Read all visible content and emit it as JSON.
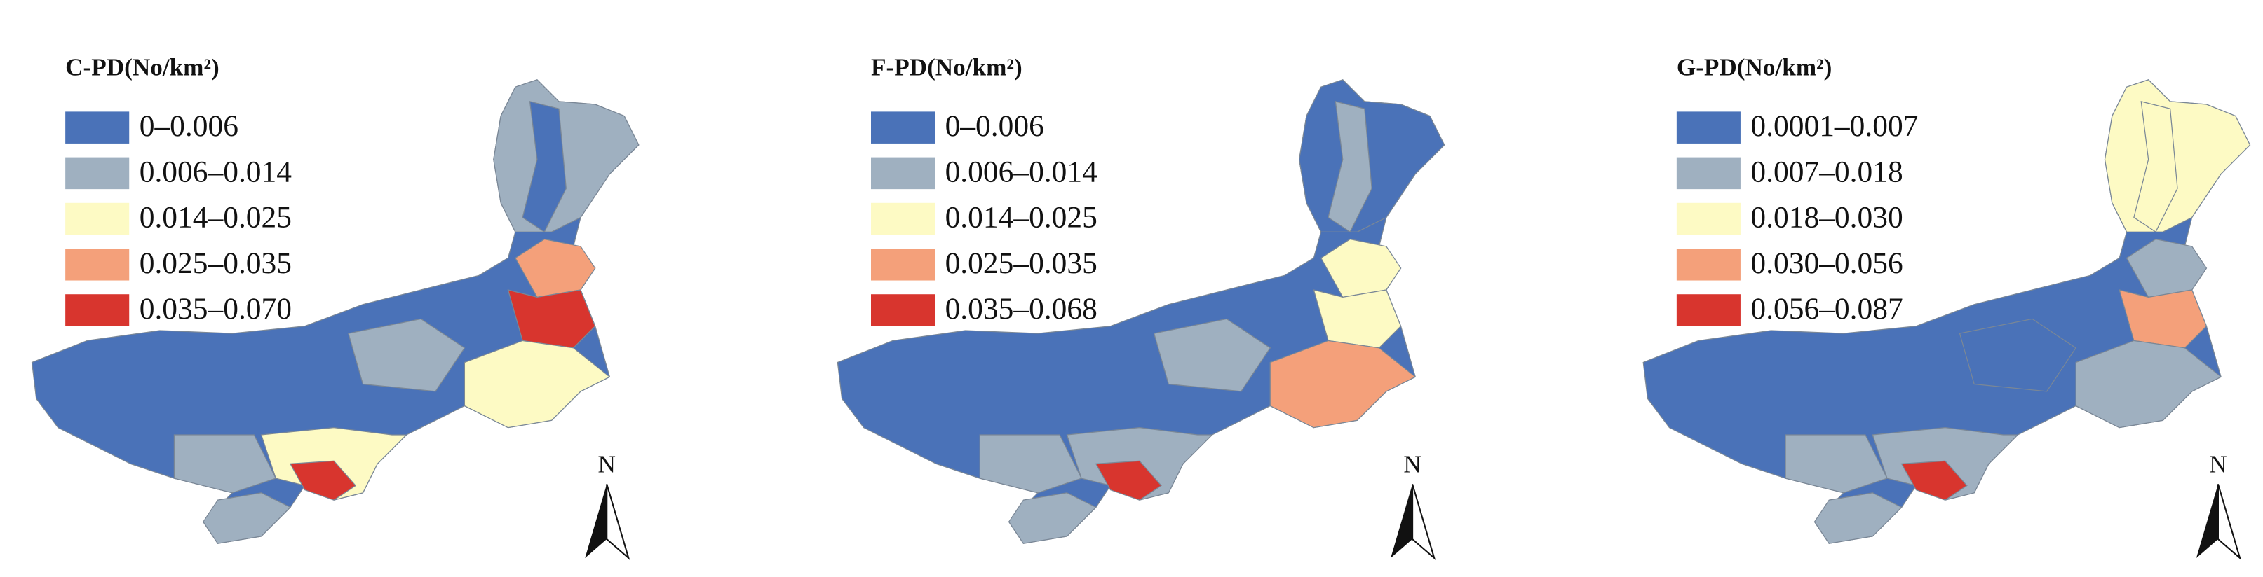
{
  "panels": [
    {
      "title": "C-PD(No/km²)",
      "north": "N",
      "legend": [
        {
          "label": "0–0.006",
          "color": "#4a72b8"
        },
        {
          "label": "0.006–0.014",
          "color": "#9fb0c0"
        },
        {
          "label": "0.014–0.025",
          "color": "#fdfac4"
        },
        {
          "label": "0.025–0.035",
          "color": "#f4a07a"
        },
        {
          "label": "0.035–0.070",
          "color": "#d8352e"
        }
      ]
    },
    {
      "title": "F-PD(No/km²)",
      "north": "N",
      "legend": [
        {
          "label": "0–0.006",
          "color": "#4a72b8"
        },
        {
          "label": "0.006–0.014",
          "color": "#9fb0c0"
        },
        {
          "label": "0.014–0.025",
          "color": "#fdfac4"
        },
        {
          "label": "0.025–0.035",
          "color": "#f4a07a"
        },
        {
          "label": "0.035–0.068",
          "color": "#d8352e"
        }
      ]
    },
    {
      "title": "G-PD(No/km²)",
      "north": "N",
      "legend": [
        {
          "label": "0.0001–0.007",
          "color": "#4a72b8"
        },
        {
          "label": "0.007–0.018",
          "color": "#9fb0c0"
        },
        {
          "label": "0.018–0.030",
          "color": "#fdfac4"
        },
        {
          "label": "0.030–0.056",
          "color": "#f4a07a"
        },
        {
          "label": "0.056–0.087",
          "color": "#d8352e"
        }
      ]
    }
  ]
}
